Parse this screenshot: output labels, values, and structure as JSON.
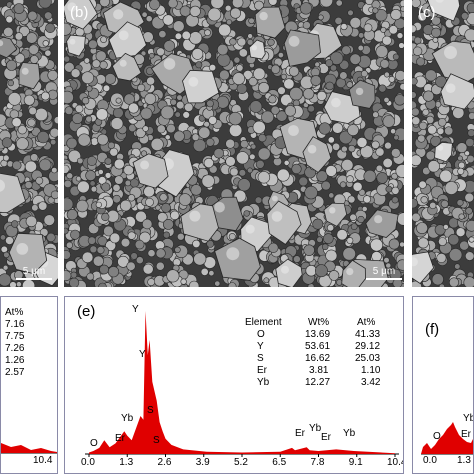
{
  "sem_panels": {
    "a": {
      "scale": "5 μm"
    },
    "b": {
      "label": "(b)",
      "scale": "5 μm"
    },
    "c": {
      "label": "(c)"
    }
  },
  "eds_d": {
    "table": {
      "at_header": "At%",
      "values": [
        "7.16",
        "7.75",
        "7.26",
        "1.26",
        "2.57"
      ]
    },
    "x_tick": "10.4"
  },
  "eds_e": {
    "label": "(e)",
    "table": {
      "headers": [
        "Element",
        "Wt%",
        "At%"
      ],
      "rows": [
        {
          "el": "O",
          "wt": "13.69",
          "at": "41.33"
        },
        {
          "el": "Y",
          "wt": "53.61",
          "at": "29.12"
        },
        {
          "el": "S",
          "wt": "16.62",
          "at": "25.03"
        },
        {
          "el": "Er",
          "wt": "3.81",
          "at": "1.10"
        },
        {
          "el": "Yb",
          "wt": "12.27",
          "at": "3.42"
        }
      ]
    },
    "peaks": {
      "Y_top": "Y",
      "Y_mid": "Y",
      "S_mid": "S",
      "Yb": "Yb",
      "S": "S",
      "Er": "Er",
      "O": "O",
      "Er_r1": "Er",
      "Yb_r": "Yb",
      "Er_r2": "Er",
      "Yb_r2": "Yb"
    },
    "x_ticks": [
      "0.0",
      "1.3",
      "2.6",
      "3.9",
      "5.2",
      "6.5",
      "7.8",
      "9.1",
      "10.4"
    ],
    "spectrum": [
      [
        0.0,
        2
      ],
      [
        0.15,
        4
      ],
      [
        0.35,
        8
      ],
      [
        0.52,
        18
      ],
      [
        0.7,
        9
      ],
      [
        0.9,
        14
      ],
      [
        1.05,
        22
      ],
      [
        1.2,
        30
      ],
      [
        1.3,
        24
      ],
      [
        1.45,
        18
      ],
      [
        1.6,
        34
      ],
      [
        1.75,
        50
      ],
      [
        1.85,
        45
      ],
      [
        1.92,
        188
      ],
      [
        2.0,
        130
      ],
      [
        2.06,
        150
      ],
      [
        2.15,
        95
      ],
      [
        2.3,
        70
      ],
      [
        2.4,
        42
      ],
      [
        2.5,
        30
      ],
      [
        2.6,
        20
      ],
      [
        2.8,
        12
      ],
      [
        3.2,
        6
      ],
      [
        4.0,
        3
      ],
      [
        5.2,
        2
      ],
      [
        6.5,
        3
      ],
      [
        6.9,
        8
      ],
      [
        7.0,
        5
      ],
      [
        7.4,
        9
      ],
      [
        7.5,
        5
      ],
      [
        7.8,
        4
      ],
      [
        8.4,
        6
      ],
      [
        9.0,
        4
      ],
      [
        10.4,
        1
      ]
    ]
  },
  "eds_f": {
    "label": "(f)",
    "peaks": {
      "Yb": "Yb",
      "Er": "Er",
      "O": "O"
    },
    "x_ticks": [
      "0.0",
      "1.3"
    ]
  },
  "colors": {
    "spectrum_fill": "#e00000",
    "border": "#8a8aa8",
    "sem_base": "#3c3c3c"
  }
}
